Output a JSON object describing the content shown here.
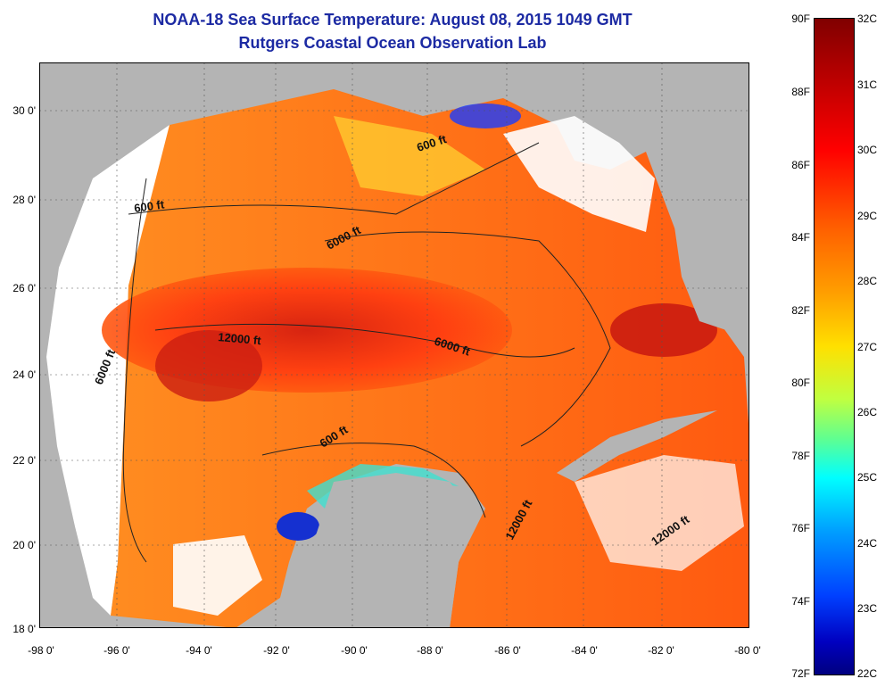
{
  "title": {
    "line1": "NOAA-18 Sea Surface Temperature:  August 08, 2015 1049 GMT",
    "line2": "Rutgers Coastal Ocean Observation Lab"
  },
  "map": {
    "latitude_labels": [
      "30 0'",
      "28 0'",
      "26 0'",
      "24 0'",
      "22 0'",
      "20 0'",
      "18 0'"
    ],
    "longitude_labels": [
      "-98 0'",
      "-96 0'",
      "-94 0'",
      "-92 0'",
      "-90 0'",
      "-88 0'",
      "-86 0'",
      "-84 0'",
      "-82 0'",
      "-80 0'"
    ],
    "lat_range": [
      18,
      31
    ],
    "lon_range": [
      -98,
      -80
    ],
    "contour_labels": [
      "600 ft",
      "600 ft",
      "6000 ft",
      "12000 ft",
      "6000 ft",
      "6000 ft",
      "600 ft",
      "12000 ft",
      "12000 ft"
    ],
    "colors": {
      "land": "#b4b4b4",
      "cloud": "#ffffff",
      "background": "#ffffff"
    }
  },
  "colorbar": {
    "fahrenheit": [
      "90F",
      "88F",
      "86F",
      "84F",
      "82F",
      "80F",
      "78F",
      "76F",
      "74F",
      "72F"
    ],
    "celsius": [
      "32C",
      "31C",
      "30C",
      "29C",
      "28C",
      "27C",
      "26C",
      "25C",
      "24C",
      "23C",
      "22C"
    ],
    "range_f": [
      72,
      90
    ],
    "range_c": [
      22,
      32
    ],
    "colormap": [
      "#800000",
      "#ff0000",
      "#ffa000",
      "#ffe000",
      "#60ff90",
      "#00ffff",
      "#0040ff",
      "#000080"
    ]
  }
}
